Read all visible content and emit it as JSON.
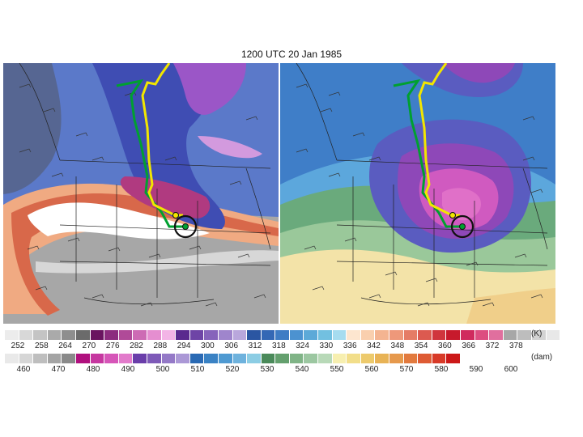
{
  "title": "1200 UTC 20 Jan 1985",
  "legend_k": {
    "unit": "(K)",
    "ticks": [
      "252",
      "258",
      "264",
      "270",
      "276",
      "282",
      "288",
      "294",
      "300",
      "306",
      "312",
      "318",
      "324",
      "330",
      "336",
      "342",
      "348",
      "354",
      "360",
      "366",
      "372",
      "378"
    ],
    "colors": [
      "#ececec",
      "#d8d8d8",
      "#c4c4c4",
      "#aaaaaa",
      "#8e8e8e",
      "#6b6b6b",
      "#6a1460",
      "#8c2c7e",
      "#b04a98",
      "#cd6bb4",
      "#e58ed0",
      "#f3b4e6",
      "#5a2a8e",
      "#6e44a6",
      "#8663bb",
      "#9f85cc",
      "#b9a7dc",
      "#2b56a2",
      "#3468b5",
      "#3f7cc4",
      "#4c92d0",
      "#5ca9d8",
      "#72c0e0",
      "#a6dcef",
      "#fde6cf",
      "#f9cfae",
      "#f4b491",
      "#ee987a",
      "#e57c66",
      "#dc5a50",
      "#d0353d",
      "#c71a2c",
      "#d02a5e",
      "#dd4d80",
      "#e06f9e",
      "#a7a7a7",
      "#bdbdbd",
      "#d3d3d3",
      "#e8e8e8"
    ]
  },
  "legend_dam": {
    "unit": "(dam)",
    "ticks": [
      "460",
      "470",
      "480",
      "490",
      "500",
      "510",
      "520",
      "530",
      "540",
      "550",
      "560",
      "570",
      "580",
      "590",
      "600"
    ],
    "colors": [
      "#e9e9e9",
      "#d6d6d6",
      "#bebebe",
      "#a4a4a4",
      "#8a8a8a",
      "#b0107e",
      "#c637a0",
      "#d655b8",
      "#e27bcb",
      "#6a3eaa",
      "#7e5ab8",
      "#9479c7",
      "#ab98d6",
      "#2a6ab4",
      "#3a82c4",
      "#4f9ad2",
      "#6eb2dd",
      "#8ccde4",
      "#4a8a5a",
      "#64a06e",
      "#80b487",
      "#9cc7a1",
      "#b8d9b8",
      "#f7efb0",
      "#f2de8a",
      "#edca6c",
      "#e8b356",
      "#e6994c",
      "#e27a3e",
      "#de5b34",
      "#d83a28",
      "#cc1818"
    ]
  },
  "map_left": {
    "fill_colors": [
      "#5b79c9",
      "#a7a7a7",
      "#f0aa82",
      "#d8684a",
      "#4f4f4f",
      "#3f4db3",
      "#9b56c7",
      "#d39ade",
      "#b03a80",
      "#d7d7d7",
      "#ffffff"
    ]
  },
  "map_right": {
    "fill_colors": [
      "#3f7ec8",
      "#5ca7dc",
      "#7cbfe8",
      "#6aaa7c",
      "#9ac89a",
      "#f3e3a8",
      "#f0cf8a",
      "#5a5cc0",
      "#8e48b8",
      "#d05ac0",
      "#e070c8",
      "#e0b07a"
    ]
  }
}
